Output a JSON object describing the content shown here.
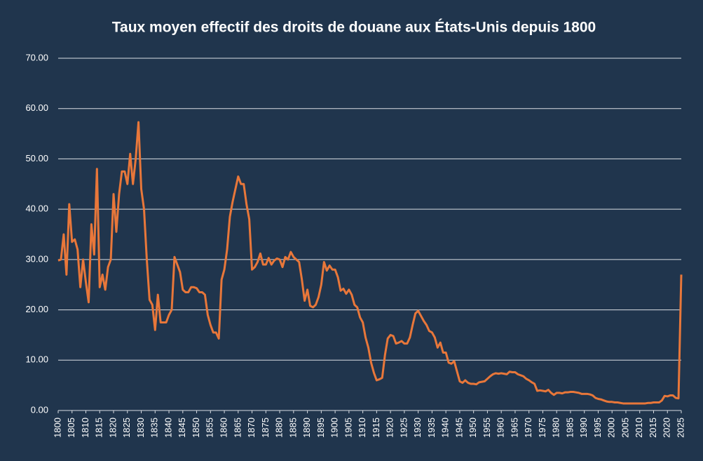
{
  "chart_data": {
    "type": "line",
    "title": "Taux moyen effectif des droits de douane aux États-Unis depuis 1800",
    "color": "#e8773a",
    "grid": true,
    "x": [
      1800,
      1801,
      1802,
      1803,
      1804,
      1805,
      1806,
      1807,
      1808,
      1809,
      1810,
      1811,
      1812,
      1813,
      1814,
      1815,
      1816,
      1817,
      1818,
      1819,
      1820,
      1821,
      1822,
      1823,
      1824,
      1825,
      1826,
      1827,
      1828,
      1829,
      1830,
      1831,
      1832,
      1833,
      1834,
      1835,
      1836,
      1837,
      1838,
      1839,
      1840,
      1841,
      1842,
      1843,
      1844,
      1845,
      1846,
      1847,
      1848,
      1849,
      1850,
      1851,
      1852,
      1853,
      1854,
      1855,
      1856,
      1857,
      1858,
      1859,
      1860,
      1861,
      1862,
      1863,
      1864,
      1865,
      1866,
      1867,
      1868,
      1869,
      1870,
      1871,
      1872,
      1873,
      1874,
      1875,
      1876,
      1877,
      1878,
      1879,
      1880,
      1881,
      1882,
      1883,
      1884,
      1885,
      1886,
      1887,
      1888,
      1889,
      1890,
      1891,
      1892,
      1893,
      1894,
      1895,
      1896,
      1897,
      1898,
      1899,
      1900,
      1901,
      1902,
      1903,
      1904,
      1905,
      1906,
      1907,
      1908,
      1909,
      1910,
      1911,
      1912,
      1913,
      1914,
      1915,
      1916,
      1917,
      1918,
      1919,
      1920,
      1921,
      1922,
      1923,
      1924,
      1925,
      1926,
      1927,
      1928,
      1929,
      1930,
      1931,
      1932,
      1933,
      1934,
      1935,
      1936,
      1937,
      1938,
      1939,
      1940,
      1941,
      1942,
      1943,
      1944,
      1945,
      1946,
      1947,
      1948,
      1949,
      1950,
      1951,
      1952,
      1953,
      1954,
      1955,
      1956,
      1957,
      1958,
      1959,
      1960,
      1961,
      1962,
      1963,
      1964,
      1965,
      1966,
      1967,
      1968,
      1969,
      1970,
      1971,
      1972,
      1973,
      1974,
      1975,
      1976,
      1977,
      1978,
      1979,
      1980,
      1981,
      1982,
      1983,
      1984,
      1985,
      1986,
      1987,
      1988,
      1989,
      1990,
      1991,
      1992,
      1993,
      1994,
      1995,
      1996,
      1997,
      1998,
      1999,
      2000,
      2001,
      2002,
      2003,
      2004,
      2005,
      2006,
      2007,
      2008,
      2009,
      2010,
      2011,
      2012,
      2013,
      2014,
      2015,
      2016,
      2017,
      2018,
      2019,
      2020,
      2021,
      2022,
      2023,
      2024,
      2025
    ],
    "values": [
      29.8,
      30,
      35,
      27,
      41,
      33.5,
      34,
      32,
      24.5,
      30,
      25.5,
      21.5,
      37,
      31,
      48,
      24.5,
      27,
      24,
      28.5,
      30,
      43,
      35.5,
      43,
      47.5,
      47.5,
      45,
      51,
      45,
      50,
      57.3,
      44,
      40,
      30,
      22,
      21,
      16,
      23,
      17.5,
      17.5,
      17.5,
      19,
      20,
      30.5,
      29,
      27.5,
      24,
      23.5,
      23.5,
      24.5,
      24.5,
      24.3,
      23.5,
      23.5,
      23,
      19,
      17,
      15.5,
      15.5,
      14.3,
      26,
      28,
      32,
      38.5,
      41.5,
      44,
      46.5,
      45,
      45,
      41,
      38,
      28,
      28.5,
      29.5,
      31.2,
      29,
      29,
      30.3,
      29,
      29.8,
      30.2,
      30,
      28.5,
      30.5,
      30,
      31.5,
      30.5,
      30,
      29.5,
      26,
      21.8,
      24,
      20.8,
      20.5,
      21,
      22.5,
      25,
      29.5,
      27.8,
      28.8,
      28,
      28,
      26.5,
      23.8,
      24.2,
      23.2,
      24,
      23,
      21,
      20.5,
      18.5,
      17.5,
      14.5,
      12.5,
      9.5,
      7.5,
      6,
      6.2,
      6.5,
      11,
      14.3,
      15,
      14.8,
      13.3,
      13.5,
      13.8,
      13.3,
      13.3,
      14.5,
      17,
      19.3,
      19.8,
      18.8,
      17.8,
      17,
      15.8,
      15.5,
      14.5,
      12.5,
      13.5,
      11.5,
      11.5,
      9.5,
      9.3,
      9.8,
      7.8,
      5.8,
      5.5,
      6,
      5.5,
      5.3,
      5.3,
      5.2,
      5.6,
      5.7,
      5.8,
      6.3,
      6.8,
      7.2,
      7.4,
      7.3,
      7.4,
      7.3,
      7.2,
      7.7,
      7.6,
      7.6,
      7.2,
      7,
      6.8,
      6.3,
      6,
      5.6,
      5.3,
      3.9,
      4,
      3.9,
      3.8,
      4.1,
      3.5,
      3.1,
      3.5,
      3.5,
      3.4,
      3.6,
      3.6,
      3.7,
      3.7,
      3.6,
      3.5,
      3.3,
      3.3,
      3.3,
      3.2,
      3,
      2.5,
      2.3,
      2.2,
      2,
      1.8,
      1.7,
      1.7,
      1.6,
      1.6,
      1.5,
      1.4,
      1.4,
      1.4,
      1.4,
      1.4,
      1.4,
      1.4,
      1.4,
      1.4,
      1.5,
      1.5,
      1.6,
      1.6,
      1.6,
      2,
      2.9,
      2.8,
      3,
      3,
      2.5,
      2.4,
      27
    ],
    "xlim": [
      1800,
      2025
    ],
    "xticks": [
      1800,
      1805,
      1810,
      1815,
      1820,
      1825,
      1830,
      1835,
      1840,
      1845,
      1850,
      1855,
      1860,
      1865,
      1870,
      1875,
      1880,
      1885,
      1890,
      1895,
      1900,
      1905,
      1910,
      1915,
      1920,
      1925,
      1930,
      1935,
      1940,
      1945,
      1950,
      1955,
      1960,
      1965,
      1970,
      1975,
      1980,
      1985,
      1990,
      1995,
      2000,
      2005,
      2010,
      2015,
      2020,
      2025
    ],
    "ylim": [
      0,
      70
    ],
    "yticks": [
      {
        "value": 0,
        "label": "0.00"
      },
      {
        "value": 10,
        "label": "10.00"
      },
      {
        "value": 20,
        "label": "20.00"
      },
      {
        "value": 30,
        "label": "30.00"
      },
      {
        "value": 40,
        "label": "40.00"
      },
      {
        "value": 50,
        "label": "50.00"
      },
      {
        "value": 60,
        "label": "60.00"
      },
      {
        "value": 70,
        "label": "70.00"
      }
    ]
  }
}
